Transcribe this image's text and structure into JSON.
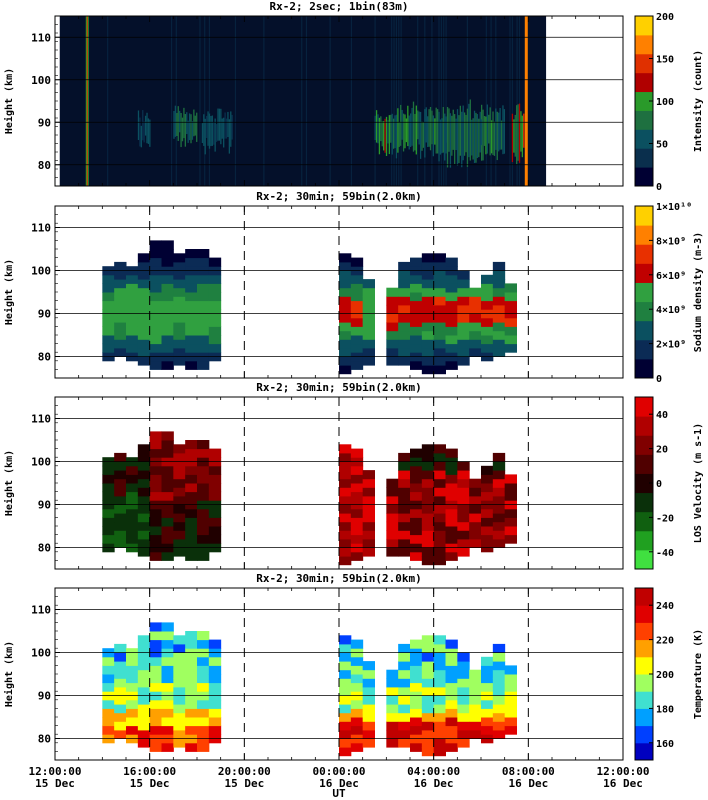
{
  "x_axis": {
    "label": "UT",
    "ticks": [
      {
        "time": "12:00:00",
        "date": "15 Dec"
      },
      {
        "time": "16:00:00",
        "date": "15 Dec"
      },
      {
        "time": "20:00:00",
        "date": "15 Dec"
      },
      {
        "time": "00:00:00",
        "date": "16 Dec"
      },
      {
        "time": "04:00:00",
        "date": "16 Dec"
      },
      {
        "time": "08:00:00",
        "date": "16 Dec"
      },
      {
        "time": "12:00:00",
        "date": "16 Dec"
      }
    ]
  },
  "colors": {
    "intensity": [
      "#000033",
      "#0a2f4d",
      "#0b5060",
      "#1e7040",
      "#2a9a2a",
      "#b00000",
      "#e03000",
      "#ff8000",
      "#ffd000"
    ],
    "sodium": [
      "#000033",
      "#0b2b55",
      "#0b5060",
      "#1f8040",
      "#30a040",
      "#c00000",
      "#e83000",
      "#ff8000",
      "#ffd000"
    ],
    "velocity": [
      "#40e040",
      "#20a020",
      "#106010",
      "#0a300a",
      "#200000",
      "#500000",
      "#800000",
      "#b00000",
      "#e00000"
    ],
    "temperature": [
      "#0000c0",
      "#0040ff",
      "#00a0ff",
      "#40e0d0",
      "#a0ff60",
      "#ffff00",
      "#ffa000",
      "#ff4000",
      "#e00000",
      "#c00000"
    ]
  },
  "chart_data": [
    {
      "type": "heatmap",
      "title": "Rx-2;  2sec; 1bin(83m)",
      "ylabel": "Height (km)",
      "ylim": [
        75,
        115
      ],
      "yticks": [
        "80",
        "90",
        "100",
        "110"
      ],
      "colorbar": {
        "label": "Intensity (count)",
        "range": [
          0,
          200
        ],
        "ticks": [
          "0",
          "50",
          "100",
          "150",
          "200"
        ]
      },
      "x_range": [
        "15 Dec 12:00",
        "16 Dec 12:00"
      ],
      "data_window": [
        "15 Dec 14:00",
        "16 Dec 08:30"
      ],
      "echo_layer_km": [
        80,
        97
      ],
      "peak_count": 110
    },
    {
      "type": "heatmap",
      "title": "Rx-2; 30min; 59bin(2.0km)",
      "ylabel": "Height (km)",
      "ylim": [
        75,
        115
      ],
      "yticks": [
        "80",
        "90",
        "100",
        "110"
      ],
      "colorbar": {
        "label": "Sodium density (m-3)",
        "range": [
          0,
          10000000000.0
        ],
        "ticks": [
          "0",
          "2×10⁹",
          "4×10⁹",
          "6×10⁹",
          "8×10⁹",
          "1×10¹⁰"
        ]
      },
      "layer_km": [
        78,
        102
      ],
      "peak_density": 7000000000.0
    },
    {
      "type": "heatmap",
      "title": "Rx-2; 30min; 59bin(2.0km)",
      "ylabel": "Height (km)",
      "ylim": [
        75,
        115
      ],
      "yticks": [
        "80",
        "90",
        "100",
        "110"
      ],
      "colorbar": {
        "label": "LOS Velocity (m s-1)",
        "range": [
          -50,
          50
        ],
        "ticks": [
          "-40",
          "-20",
          "0",
          "20",
          "40"
        ]
      },
      "layer_km": [
        78,
        102
      ]
    },
    {
      "type": "heatmap",
      "title": "Rx-2; 30min; 59bin(2.0km)",
      "ylabel": "Height (km)",
      "ylim": [
        75,
        115
      ],
      "yticks": [
        "80",
        "90",
        "100",
        "110"
      ],
      "colorbar": {
        "label": "Temperature (K)",
        "range": [
          150,
          250
        ],
        "ticks": [
          "160",
          "180",
          "200",
          "220",
          "240"
        ]
      },
      "layer_km": [
        78,
        102
      ],
      "temperature_range_K": [
        170,
        245
      ]
    }
  ]
}
